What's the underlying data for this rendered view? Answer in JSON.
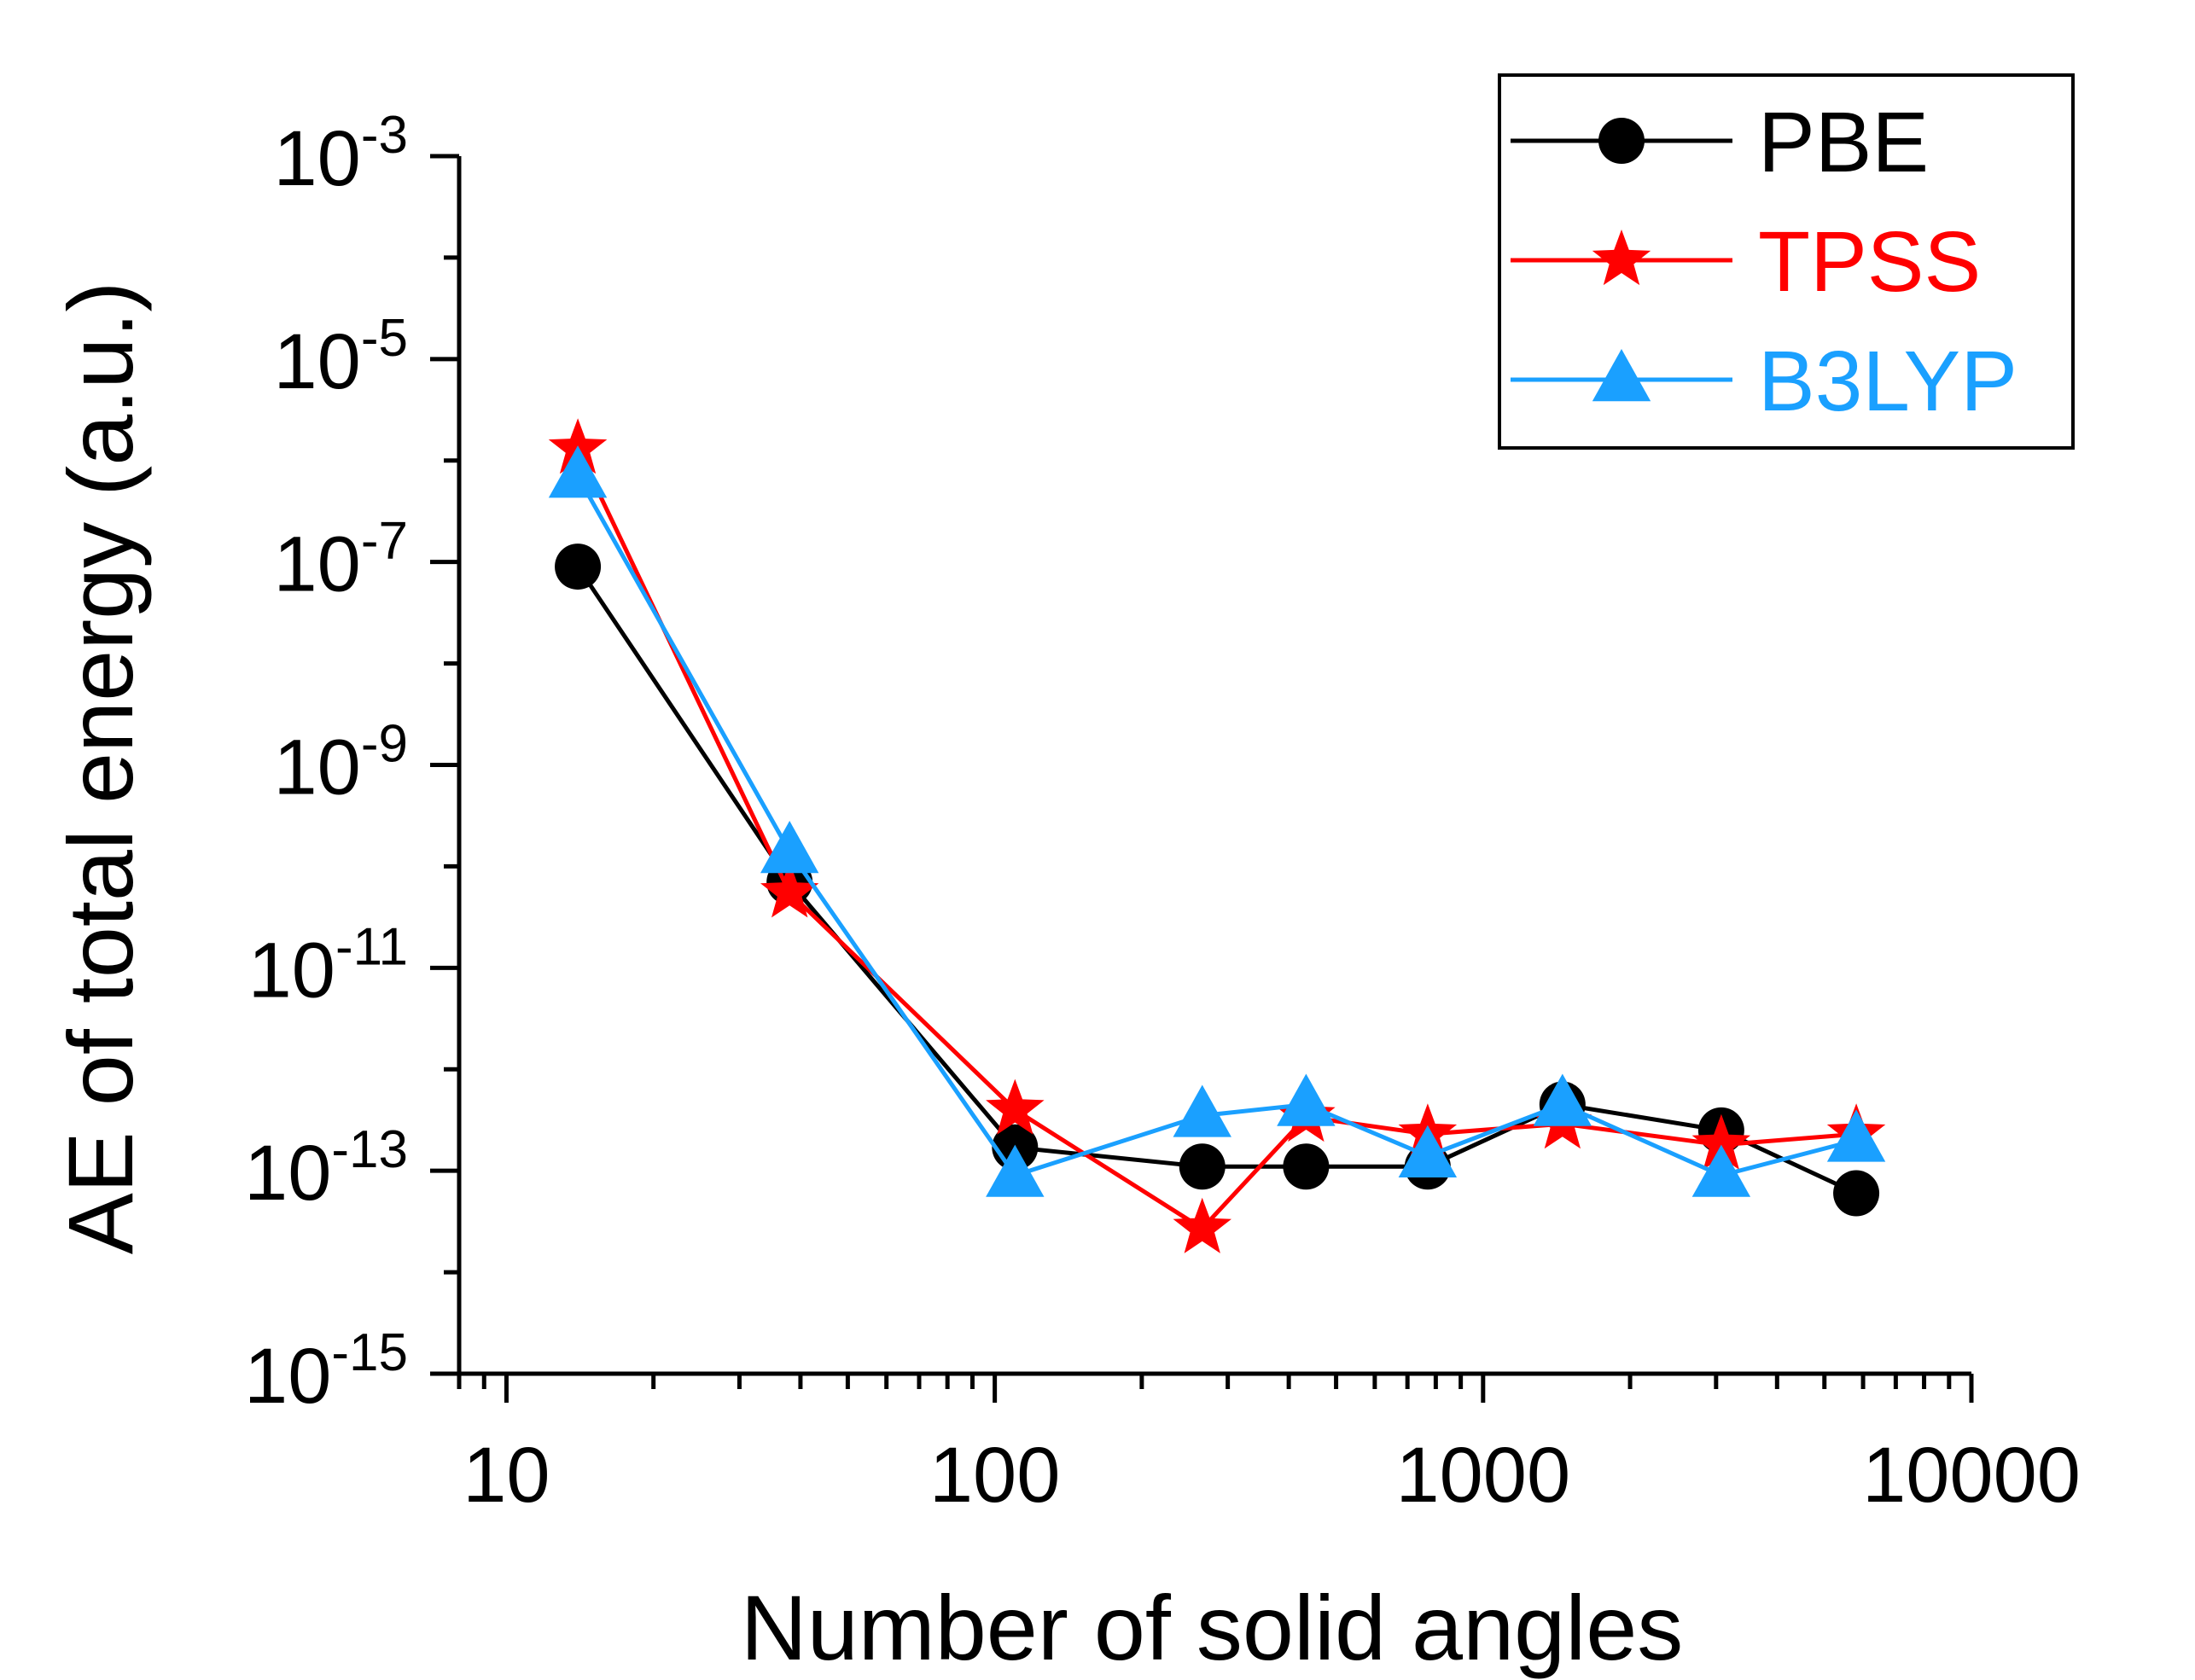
{
  "chart_data": {
    "type": "line",
    "title": "",
    "xlabel": "Number of solid angles",
    "ylabel": "AE of total energy (a.u.)",
    "xscale": "log",
    "yscale": "log",
    "xlim": [
      8,
      10000
    ],
    "ylim": [
      1e-15,
      0.001
    ],
    "xticks": [
      {
        "value": 10,
        "label": "10"
      },
      {
        "value": 100,
        "label": "100"
      },
      {
        "value": 1000,
        "label": "1000"
      },
      {
        "value": 10000,
        "label": "10000"
      }
    ],
    "yticks": [
      {
        "exp": -15,
        "base": "10",
        "sup": "-15"
      },
      {
        "exp": -13,
        "base": "10",
        "sup": "-13"
      },
      {
        "exp": -11,
        "base": "10",
        "sup": "-11"
      },
      {
        "exp": -9,
        "base": "10",
        "sup": "-9"
      },
      {
        "exp": -7,
        "base": "10",
        "sup": "-7"
      },
      {
        "exp": -5,
        "base": "10",
        "sup": "-5"
      },
      {
        "exp": -3,
        "base": "10",
        "sup": "-3"
      }
    ],
    "legend_position": "top-right",
    "grid": false,
    "series": [
      {
        "name": "PBE",
        "color": "#000000",
        "marker": "circle",
        "x": [
          14,
          38,
          110,
          266,
          434,
          770,
          1454,
          3074,
          5810
        ],
        "y": [
          9e-08,
          7e-11,
          1.7e-13,
          1.1e-13,
          1.1e-13,
          1.1e-13,
          4.5e-13,
          2.5e-13,
          6e-14
        ]
      },
      {
        "name": "TPSS",
        "color": "#ff0000",
        "marker": "star",
        "x": [
          14,
          38,
          110,
          266,
          434,
          770,
          1454,
          3074,
          5810
        ],
        "y": [
          1.3e-06,
          5.5e-11,
          4e-13,
          2.7e-14,
          3.4e-13,
          2.3e-13,
          2.9e-13,
          1.8e-13,
          2.3e-13
        ]
      },
      {
        "name": "B3LYP",
        "color": "#1aa0ff",
        "marker": "triangle",
        "x": [
          14,
          38,
          110,
          266,
          434,
          770,
          1454,
          3074,
          5810
        ],
        "y": [
          7e-07,
          1.4e-10,
          9e-14,
          3.5e-13,
          4.5e-13,
          1.4e-13,
          4.5e-13,
          9e-14,
          2e-13
        ]
      }
    ]
  }
}
